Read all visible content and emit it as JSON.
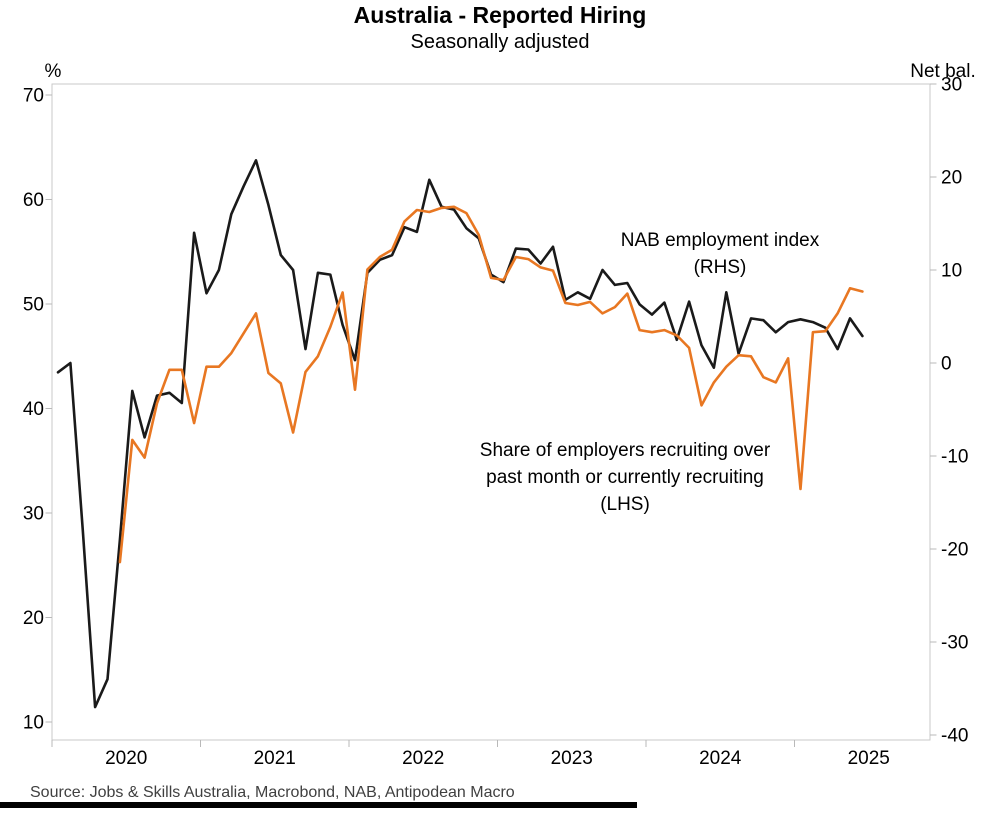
{
  "title": "Australia - Reported Hiring",
  "subtitle": "Seasonally adjusted",
  "source": "Source: Jobs & Skills Australia, Macrobond, NAB, Antipodean Macro",
  "annotations": {
    "nab": {
      "line1": "NAB employment index",
      "line2": "(RHS)"
    },
    "share": {
      "line1": "Share of employers recruiting over",
      "line2": "past month or currently recruiting",
      "line3": "(LHS)"
    }
  },
  "colors": {
    "black_series": "#1a1a1a",
    "orange_series": "#e87722",
    "axis": "#b9b9b9",
    "source_text": "#404040"
  },
  "chart_data": {
    "type": "line",
    "title": "Australia - Reported Hiring",
    "subtitle": "Seasonally adjusted",
    "x_unit": "month",
    "grid": false,
    "legend": "in-plot text annotations",
    "left_axis": {
      "label": "%",
      "min": 10,
      "max": 70,
      "ticks": [
        70,
        60,
        50,
        40,
        30,
        20,
        10
      ]
    },
    "right_axis": {
      "label": "Net bal.",
      "min": -40,
      "max": 30,
      "ticks": [
        30,
        20,
        10,
        0,
        -10,
        -20,
        -30,
        -40
      ]
    },
    "x_axis": {
      "year_ticks": [
        2020,
        2021,
        2022,
        2023,
        2024,
        2025
      ],
      "range": [
        "2020-01",
        "2025-06"
      ]
    },
    "series": [
      {
        "name": "NAB employment index (RHS)",
        "axis": "right",
        "color_key": "black_series",
        "start_month": "2020-01",
        "values": [
          -1.0,
          0.0,
          -18.0,
          -37.0,
          -34.0,
          -19.0,
          -3.0,
          -8.0,
          -3.5,
          -3.2,
          -4.3,
          14.0,
          7.5,
          10.0,
          16.0,
          19.0,
          21.8,
          17.0,
          11.6,
          10.0,
          1.5,
          9.7,
          9.5,
          4.1,
          0.3,
          9.7,
          11.1,
          11.6,
          14.6,
          14.1,
          19.7,
          16.8,
          16.5,
          14.5,
          13.4,
          9.5,
          8.7,
          12.3,
          12.2,
          10.7,
          12.5,
          6.8,
          7.6,
          6.9,
          10.0,
          8.4,
          8.6,
          6.3,
          5.2,
          6.5,
          2.5,
          6.6,
          1.9,
          -0.5,
          7.6,
          1.0,
          4.8,
          4.6,
          3.3,
          4.4,
          4.7,
          4.4,
          3.8,
          1.5,
          4.8,
          2.9
        ]
      },
      {
        "name": "Share of employers recruiting over past month or currently recruiting (LHS)",
        "axis": "left",
        "color_key": "orange_series",
        "start_month": "2020-06",
        "values": [
          25.3,
          37.0,
          35.3,
          40.5,
          43.7,
          43.7,
          38.6,
          44.0,
          44.0,
          45.3,
          47.2,
          49.1,
          43.4,
          42.4,
          37.7,
          43.5,
          45.0,
          47.8,
          51.1,
          41.8,
          53.3,
          54.5,
          55.2,
          57.9,
          59.0,
          58.8,
          59.2,
          59.3,
          58.7,
          56.6,
          52.5,
          52.3,
          54.5,
          54.3,
          53.5,
          53.2,
          50.1,
          49.9,
          50.2,
          49.1,
          49.7,
          51.0,
          47.5,
          47.3,
          47.5,
          47.0,
          45.8,
          40.3,
          42.5,
          44.0,
          45.1,
          45.0,
          43.0,
          42.5,
          44.8,
          32.3,
          47.3,
          47.4,
          49.1,
          51.5,
          51.2
        ]
      }
    ]
  }
}
